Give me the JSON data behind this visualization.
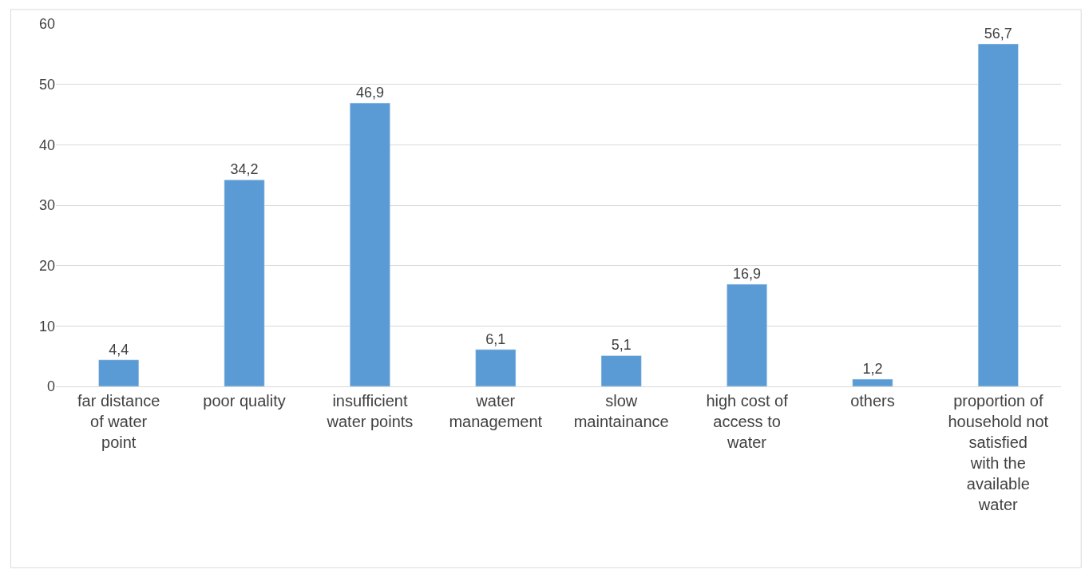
{
  "chart_data": {
    "type": "bar",
    "categories": [
      "far distance of water point",
      "poor quality",
      "insufficient water points",
      "water management",
      "slow maintainance",
      "high cost of access to water",
      "others",
      "proportion of household not satisfied with the available water"
    ],
    "values": [
      4.4,
      34.2,
      46.9,
      6.1,
      5.1,
      16.9,
      1.2,
      56.7
    ],
    "value_labels": [
      "4,4",
      "34,2",
      "46,9",
      "6,1",
      "5,1",
      "16,9",
      "1,2",
      "56,7"
    ],
    "color": "#5b9bd5",
    "ylim": [
      0,
      60
    ],
    "yticks": [
      0,
      10,
      20,
      30,
      40,
      50,
      60
    ],
    "grid": "y"
  }
}
